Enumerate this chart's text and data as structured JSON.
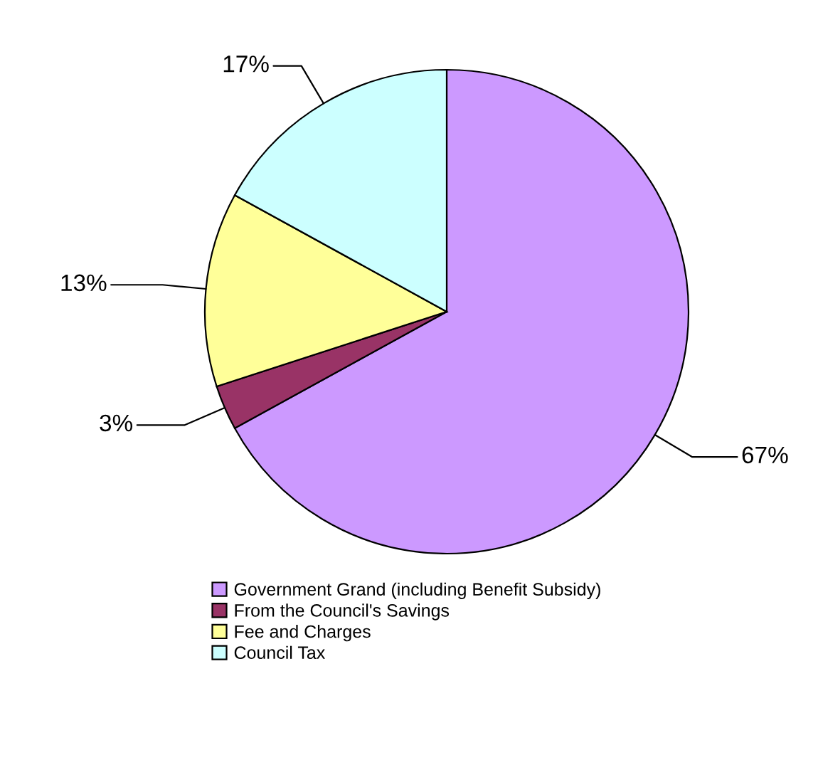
{
  "chart_data": {
    "type": "pie",
    "categories": [
      "Government Grand (including Benefit Subsidy)",
      "From the Council's Savings",
      "Fee and Charges",
      "Council Tax"
    ],
    "values": [
      67,
      3,
      13,
      17
    ],
    "colors": [
      "#cc99ff",
      "#993366",
      "#ffff99",
      "#ccffff"
    ],
    "value_labels": [
      "67%",
      "3%",
      "13%",
      "17%"
    ],
    "legend": "bottom"
  }
}
